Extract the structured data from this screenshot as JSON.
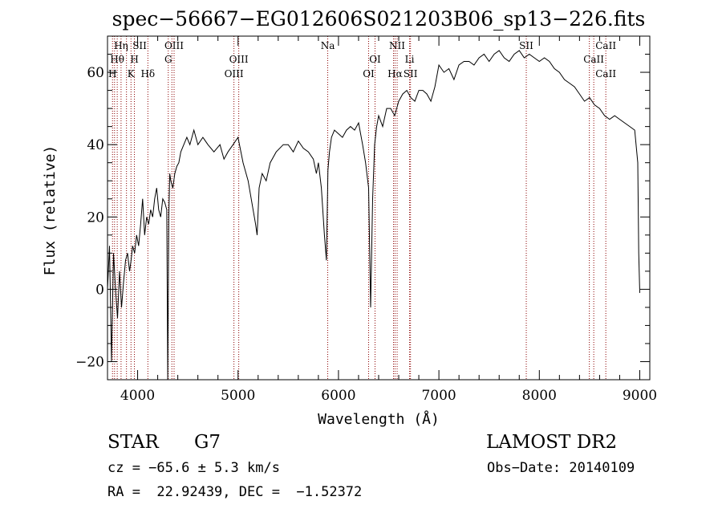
{
  "chart_data": {
    "type": "line",
    "title": "spec−56667−EG012606S021203B06_sp13−226.fits",
    "xlabel": "Wavelength (Å)",
    "ylabel": "Flux (relative)",
    "xlim": [
      3700,
      9100
    ],
    "ylim": [
      -25,
      70
    ],
    "x_ticks": [
      4000,
      5000,
      6000,
      7000,
      8000,
      9000
    ],
    "y_ticks": [
      -20,
      0,
      20,
      40,
      60
    ],
    "x_tick_labels": [
      "4000",
      "5000",
      "6000",
      "7000",
      "8000",
      "9000"
    ],
    "y_tick_labels": [
      "−20",
      "0",
      "20",
      "40",
      "60"
    ],
    "grid": false,
    "series": [
      {
        "x": [
          3700,
          3720,
          3740,
          3760,
          3780,
          3800,
          3820,
          3840,
          3860,
          3880,
          3900,
          3920,
          3935,
          3950,
          3970,
          3990,
          4010,
          4030,
          4050,
          4070,
          4090,
          4110,
          4130,
          4150,
          4170,
          4190,
          4210,
          4230,
          4250,
          4270,
          4290,
          4300,
          4310,
          4320,
          4330,
          4350,
          4370,
          4390,
          4410,
          4430,
          4460,
          4490,
          4520,
          4560,
          4600,
          4650,
          4700,
          4760,
          4820,
          4860,
          4900,
          4950,
          5000,
          5050,
          5100,
          5150,
          5175,
          5190,
          5210,
          5240,
          5280,
          5320,
          5380,
          5450,
          5500,
          5550,
          5600,
          5650,
          5700,
          5750,
          5780,
          5800,
          5830,
          5860,
          5880,
          5895,
          5910,
          5930,
          5960,
          6000,
          6040,
          6080,
          6120,
          6160,
          6200,
          6240,
          6270,
          6300,
          6320,
          6340,
          6360,
          6380,
          6400,
          6440,
          6480,
          6520,
          6560,
          6600,
          6640,
          6680,
          6720,
          6760,
          6800,
          6840,
          6880,
          6920,
          6960,
          7000,
          7050,
          7100,
          7150,
          7200,
          7250,
          7300,
          7350,
          7400,
          7450,
          7500,
          7550,
          7600,
          7650,
          7700,
          7750,
          7800,
          7850,
          7900,
          7950,
          8000,
          8050,
          8100,
          8150,
          8200,
          8250,
          8300,
          8350,
          8400,
          8450,
          8500,
          8550,
          8600,
          8650,
          8700,
          8750,
          8800,
          8850,
          8900,
          8950,
          8980,
          8990,
          9000
        ],
        "y": [
          0,
          12,
          -20,
          10,
          0,
          -8,
          5,
          -5,
          2,
          8,
          10,
          5,
          8,
          12,
          10,
          15,
          12,
          18,
          25,
          15,
          20,
          18,
          22,
          20,
          25,
          28,
          22,
          20,
          25,
          24,
          22,
          -25,
          20,
          32,
          30,
          28,
          32,
          34,
          35,
          38,
          40,
          42,
          40,
          44,
          40,
          42,
          40,
          38,
          40,
          36,
          38,
          40,
          42,
          35,
          30,
          22,
          18,
          15,
          28,
          32,
          30,
          35,
          38,
          40,
          40,
          38,
          41,
          39,
          38,
          36,
          32,
          35,
          28,
          15,
          8,
          33,
          38,
          42,
          44,
          43,
          42,
          44,
          45,
          44,
          46,
          40,
          35,
          28,
          -5,
          25,
          40,
          45,
          48,
          45,
          50,
          50,
          48,
          52,
          54,
          55,
          53,
          52,
          55,
          55,
          54,
          52,
          56,
          62,
          60,
          61,
          58,
          62,
          63,
          63,
          62,
          64,
          65,
          63,
          65,
          66,
          64,
          63,
          65,
          66,
          64,
          65,
          64,
          63,
          64,
          63,
          61,
          60,
          58,
          57,
          56,
          54,
          52,
          53,
          51,
          50,
          48,
          47,
          48,
          47,
          46,
          45,
          44,
          35,
          10,
          -1
        ]
      }
    ],
    "line_markers": [
      {
        "label": "Hη",
        "x": 3835,
        "row": 1
      },
      {
        "label": "Hθ",
        "x": 3797,
        "row": 2
      },
      {
        "label": "H",
        "x": 3750,
        "row": 3
      },
      {
        "label": "SII",
        "x": 4020,
        "row": 1
      },
      {
        "label": "H",
        "x": 3968,
        "row": 2
      },
      {
        "label": "K",
        "x": 3934,
        "row": 3
      },
      {
        "label": "Hδ",
        "x": 4102,
        "row": 3
      },
      {
        "label": "OIII",
        "x": 4363,
        "row": 1
      },
      {
        "label": "G",
        "x": 4305,
        "row": 2
      },
      {
        "label": "OIII",
        "x": 5007,
        "row": 2
      },
      {
        "label": "OIII",
        "x": 4959,
        "row": 3
      },
      {
        "label": "Na",
        "x": 5893,
        "row": 1
      },
      {
        "label": "NII",
        "x": 6584,
        "row": 1
      },
      {
        "label": "OI",
        "x": 6364,
        "row": 2
      },
      {
        "label": "OI",
        "x": 6300,
        "row": 3
      },
      {
        "label": "Li",
        "x": 6708,
        "row": 2
      },
      {
        "label": "Hα",
        "x": 6563,
        "row": 3
      },
      {
        "label": "SII",
        "x": 6717,
        "row": 3
      },
      {
        "label": "SII",
        "x": 7870,
        "row": 1
      },
      {
        "label": "CaII",
        "x": 8662,
        "row": 1
      },
      {
        "label": "CaII",
        "x": 8542,
        "row": 2
      },
      {
        "label": "CaII",
        "x": 8662,
        "row": 3
      }
    ],
    "marker_lines_x": [
      3750,
      3770,
      3797,
      3835,
      3889,
      3934,
      3968,
      4102,
      4305,
      4341,
      4363,
      4959,
      5007,
      5893,
      6300,
      6364,
      6548,
      6563,
      6584,
      6708,
      6717,
      7870,
      8498,
      8542,
      8662
    ]
  },
  "info": {
    "class": "STAR",
    "subclass": "G7",
    "survey": "LAMOST DR2",
    "cz": "cz = −65.6 ± 5.3 km/s",
    "obs_date": "Obs−Date: 20140109",
    "coords": "RA =  22.92439, DEC =  −1.52372"
  },
  "colors": {
    "spectrum": "#000000",
    "marker_lines": "#8b0000",
    "text": "#000000"
  }
}
